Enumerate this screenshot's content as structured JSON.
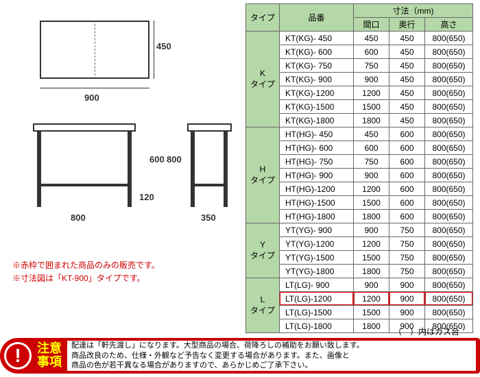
{
  "diagram": {
    "top_width": "900",
    "top_depth": "450",
    "side_width": "800",
    "side_height_outer": "800",
    "side_height_inner": "600",
    "side_leg": "120",
    "side_depth": "350"
  },
  "notes": {
    "line1": "※赤枠で囲まれた商品のみの販売です。",
    "line2": "※寸法図は「KT-900」タイプです。"
  },
  "table": {
    "headers": {
      "type": "タイプ",
      "code": "品番",
      "dimensions": "寸法（mm)",
      "width": "間口",
      "depth": "奥行",
      "height": "高さ"
    },
    "groups": [
      {
        "label": "K\nタイプ",
        "rows": [
          {
            "code": "KT(KG)- 450",
            "w": "450",
            "d": "450",
            "h": "800(650)"
          },
          {
            "code": "KT(KG)- 600",
            "w": "600",
            "d": "450",
            "h": "800(650)"
          },
          {
            "code": "KT(KG)- 750",
            "w": "750",
            "d": "450",
            "h": "800(650)"
          },
          {
            "code": "KT(KG)- 900",
            "w": "900",
            "d": "450",
            "h": "800(650)"
          },
          {
            "code": "KT(KG)-1200",
            "w": "1200",
            "d": "450",
            "h": "800(650)"
          },
          {
            "code": "KT(KG)-1500",
            "w": "1500",
            "d": "450",
            "h": "800(650)"
          },
          {
            "code": "KT(KG)-1800",
            "w": "1800",
            "d": "450",
            "h": "800(650)"
          }
        ]
      },
      {
        "label": "H\nタイプ",
        "rows": [
          {
            "code": "HT(HG)- 450",
            "w": "450",
            "d": "600",
            "h": "800(650)"
          },
          {
            "code": "HT(HG)- 600",
            "w": "600",
            "d": "600",
            "h": "800(650)"
          },
          {
            "code": "HT(HG)- 750",
            "w": "750",
            "d": "600",
            "h": "800(650)"
          },
          {
            "code": "HT(HG)- 900",
            "w": "900",
            "d": "600",
            "h": "800(650)"
          },
          {
            "code": "HT(HG)-1200",
            "w": "1200",
            "d": "600",
            "h": "800(650)"
          },
          {
            "code": "HT(HG)-1500",
            "w": "1500",
            "d": "600",
            "h": "800(650)"
          },
          {
            "code": "HT(HG)-1800",
            "w": "1800",
            "d": "600",
            "h": "800(650)"
          }
        ]
      },
      {
        "label": "Y\nタイプ",
        "rows": [
          {
            "code": "YT(YG)- 900",
            "w": "900",
            "d": "750",
            "h": "800(650)"
          },
          {
            "code": "YT(YG)-1200",
            "w": "1200",
            "d": "750",
            "h": "800(650)"
          },
          {
            "code": "YT(YG)-1500",
            "w": "1500",
            "d": "750",
            "h": "800(650)"
          },
          {
            "code": "YT(YG)-1800",
            "w": "1800",
            "d": "750",
            "h": "800(650)"
          }
        ]
      },
      {
        "label": "L\nタイプ",
        "rows": [
          {
            "code": "LT(LG)- 900",
            "w": "900",
            "d": "900",
            "h": "800(650)"
          },
          {
            "code": "LT(LG)-1200",
            "w": "1200",
            "d": "900",
            "h": "800(650)",
            "highlight": true
          },
          {
            "code": "LT(LG)-1500",
            "w": "1500",
            "d": "900",
            "h": "800(650)"
          },
          {
            "code": "LT(LG)-1800",
            "w": "1800",
            "d": "900",
            "h": "800(650)"
          }
        ]
      }
    ],
    "footnote": "（　）内はガス台"
  },
  "warning": {
    "title1": "注意",
    "title2": "事項",
    "line1": "配達は「軒先渡し」になります。大型商品の場合、荷降ろしの補助をお願い致します。",
    "line2": "商品改良のため、仕様・外観など予告なく変更する場合があります。また、画像と",
    "line3": "商品の色が若干異なる場合がありますので、あらかじめご了承下さい。"
  }
}
